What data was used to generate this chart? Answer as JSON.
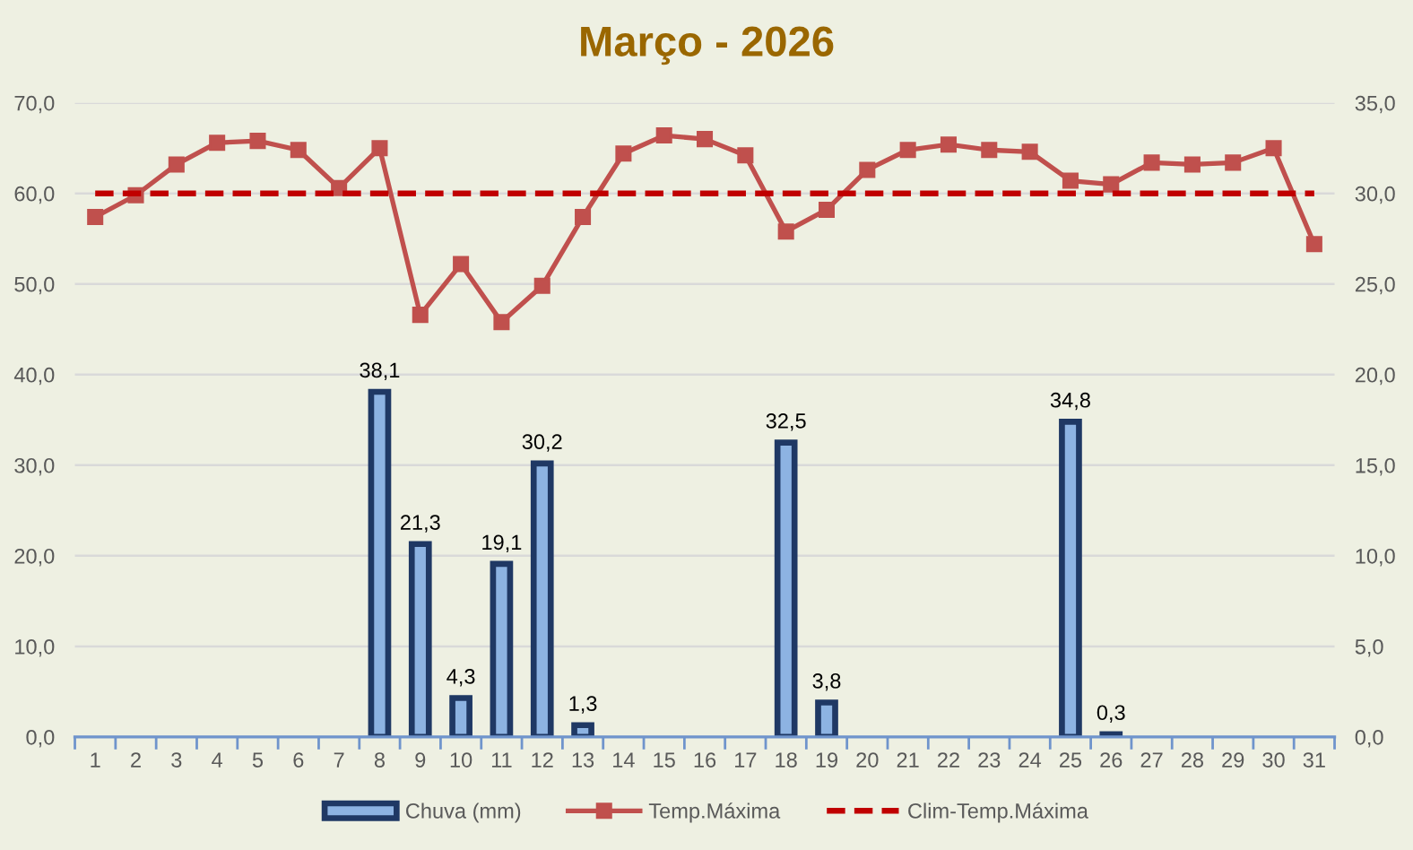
{
  "chart_data": {
    "type": "bar",
    "title": "Março - 2026",
    "categories": [
      "1",
      "2",
      "3",
      "4",
      "5",
      "6",
      "7",
      "8",
      "9",
      "10",
      "11",
      "12",
      "13",
      "14",
      "15",
      "16",
      "17",
      "18",
      "19",
      "20",
      "21",
      "22",
      "23",
      "24",
      "25",
      "26",
      "27",
      "28",
      "29",
      "30",
      "31"
    ],
    "series": [
      {
        "name": "Chuva (mm)",
        "color": "#8db3e2",
        "values": [
          null,
          null,
          null,
          null,
          null,
          null,
          null,
          38.1,
          21.3,
          4.3,
          19.1,
          30.2,
          1.3,
          null,
          null,
          null,
          null,
          32.5,
          3.8,
          null,
          null,
          null,
          null,
          null,
          34.8,
          0.3,
          null,
          null,
          null,
          null,
          null
        ],
        "value_labels": [
          null,
          null,
          null,
          null,
          null,
          null,
          null,
          "38,1",
          "21,3",
          "4,3",
          "19,1",
          "30,2",
          "1,3",
          null,
          null,
          null,
          null,
          "32,5",
          "3,8",
          null,
          null,
          null,
          null,
          null,
          "34,8",
          "0,3",
          null,
          null,
          null,
          null,
          null
        ]
      },
      {
        "name": "Temp.Máxima",
        "type": "line",
        "axis": "y2",
        "color": "#c0504d",
        "marker": "square",
        "line_style": "solid",
        "values": [
          28.7,
          29.9,
          31.6,
          32.8,
          32.9,
          32.4,
          30.3,
          32.5,
          23.3,
          26.1,
          22.9,
          24.9,
          28.7,
          32.2,
          33.2,
          33.0,
          32.1,
          27.9,
          29.1,
          31.3,
          32.4,
          32.7,
          32.4,
          32.3,
          30.7,
          30.5,
          31.7,
          31.6,
          31.7,
          32.5,
          27.2
        ]
      },
      {
        "name": "Clim-Temp.Máxima",
        "type": "line",
        "axis": "y2",
        "color": "#c00000",
        "marker": "none",
        "line_style": "dashed",
        "values": [
          30,
          30,
          30,
          30,
          30,
          30,
          30,
          30,
          30,
          30,
          30,
          30,
          30,
          30,
          30,
          30,
          30,
          30,
          30,
          30,
          30,
          30,
          30,
          30,
          30,
          30,
          30,
          30,
          30,
          30,
          30
        ]
      }
    ],
    "ylim": [
      0,
      70
    ],
    "yticks": [
      {
        "value": 0,
        "label": "0,0"
      },
      {
        "value": 10,
        "label": "10,0"
      },
      {
        "value": 20,
        "label": "20,0"
      },
      {
        "value": 30,
        "label": "30,0"
      },
      {
        "value": 40,
        "label": "40,0"
      },
      {
        "value": 50,
        "label": "50,0"
      },
      {
        "value": 60,
        "label": "60,0"
      },
      {
        "value": 70,
        "label": "70,0"
      }
    ],
    "y2lim": [
      0,
      35
    ],
    "y2ticks": [
      {
        "value": 0,
        "label": "0,0"
      },
      {
        "value": 5,
        "label": "5,0"
      },
      {
        "value": 10,
        "label": "10,0"
      },
      {
        "value": 15,
        "label": "15,0"
      },
      {
        "value": 20,
        "label": "20,0"
      },
      {
        "value": 25,
        "label": "25,0"
      },
      {
        "value": 30,
        "label": "30,0"
      },
      {
        "value": 35,
        "label": "35,0"
      }
    ],
    "grid": "y",
    "legend": "bottom"
  }
}
